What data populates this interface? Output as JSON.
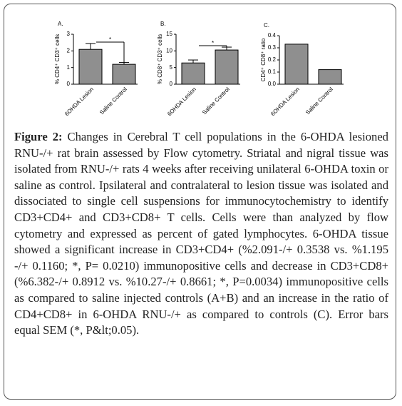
{
  "chart_data": [
    {
      "type": "bar",
      "title": "A.",
      "y_label": "% CD4⁺ CD3⁺ cells",
      "categories": [
        "6OHDA Lesion",
        "Saline Control"
      ],
      "values": [
        2.091,
        1.195
      ],
      "errors": [
        0.3538,
        0.116
      ],
      "color": "#8f8f8f",
      "ylim": [
        0,
        3
      ],
      "yticks": [
        0,
        1,
        2,
        3
      ],
      "annotation": "*"
    },
    {
      "type": "bar",
      "title": "B.",
      "y_label": "% CD8⁺ CD3⁺ cells",
      "categories": [
        "6OHDA Lesion",
        "Saline Control"
      ],
      "values": [
        6.382,
        10.27
      ],
      "errors": [
        0.8912,
        0.8661
      ],
      "color": "#8f8f8f",
      "ylim": [
        0,
        15
      ],
      "yticks": [
        0,
        5,
        10,
        15
      ],
      "annotation": "*"
    },
    {
      "type": "bar",
      "title": "C.",
      "y_label": "CD4⁺ CD8⁺ ratio",
      "categories": [
        "6OHDA Lesion",
        "Saline Control"
      ],
      "values": [
        0.33,
        0.12
      ],
      "color": "#8f8f8f",
      "ylim": [
        0,
        0.4
      ],
      "yticks": [
        {
          "value": 0,
          "label": "0.0"
        },
        0.1,
        0.2,
        0.3,
        0.4
      ]
    }
  ],
  "caption": {
    "label": "Figure 2:",
    "text": "Changes in Cerebral T cell populations in the 6-OHDA lesioned RNU-/+ rat brain assessed by Flow cytometry. Striatal and nigral tissue was isolated from RNU-/+ rats 4 weeks after receiving unilateral 6-OHDA toxin or saline as control. Ipsilateral and contralateral to lesion tissue was isolated and dissociated to single cell suspensions for immunocytochemistry to identify CD3+CD4+ and CD3+CD8+ T cells. Cells were than analyzed by flow cytometry and expressed as percent of gated lymphocytes. 6-OHDA tissue showed a significant increase in CD3+CD4+ (%2.091-/+ 0.3538 vs. %1.195 -/+ 0.1160; *, P= 0.0210) immunopositive cells and decrease in CD3+CD8+ (%6.382-/+ 0.8912 vs. %10.27-/+ 0.8661; *, P=0.0034) immunopositive cells as compared to saline injected controls (A+B) and an increase in the ratio of CD4+CD8+ in 6-OHDA RNU-/+ as compared to controls (C). Error bars equal SEM (*, P&lt;0.05)."
  }
}
